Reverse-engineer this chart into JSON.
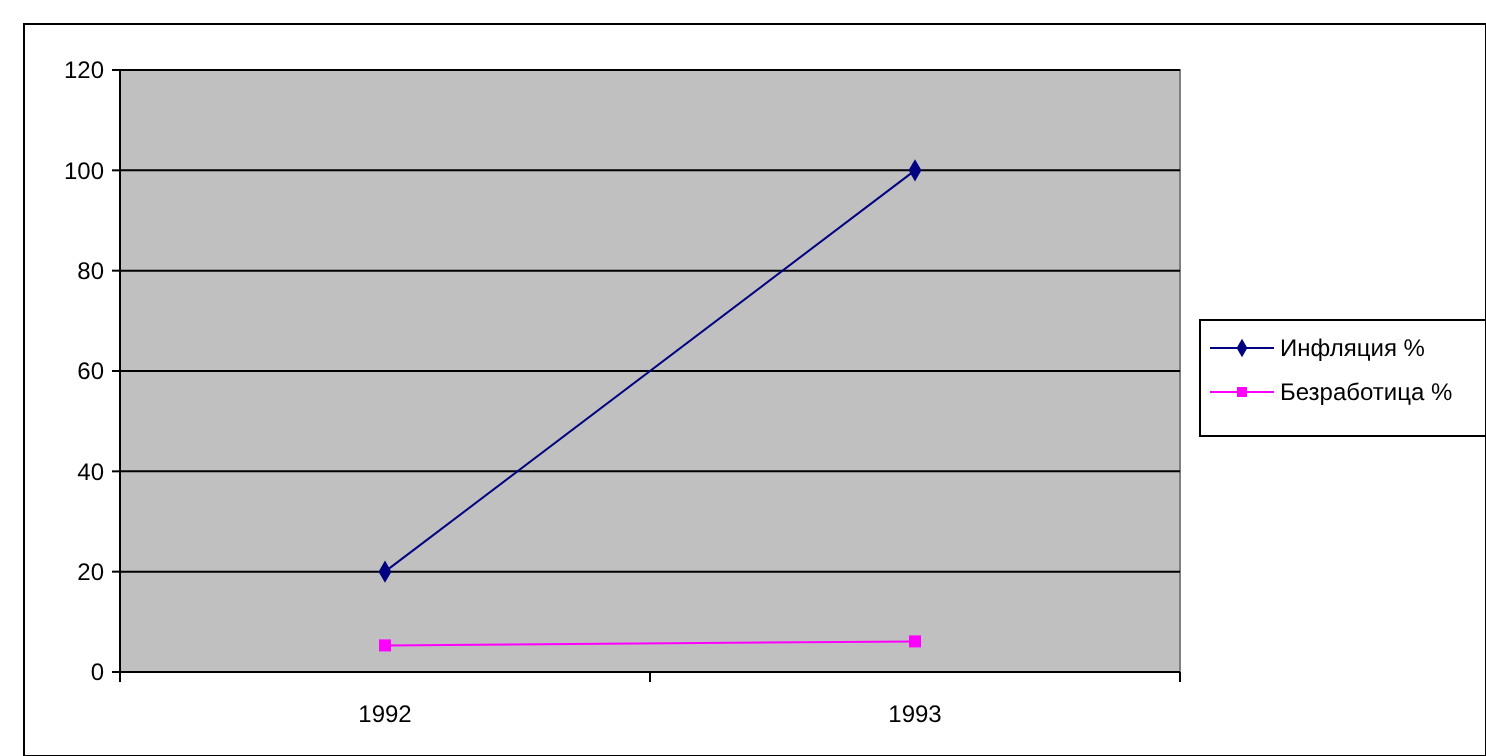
{
  "chart_data": {
    "type": "line",
    "categories": [
      "1992",
      "1993"
    ],
    "series": [
      {
        "name": "Инфляция %",
        "color": "#000080",
        "values": [
          20,
          100
        ],
        "marker": "diamond"
      },
      {
        "name": "Безработица %",
        "color": "#ff00ff",
        "values": [
          5.3,
          6.1
        ],
        "marker": "square"
      }
    ],
    "ylim": [
      0,
      120
    ],
    "yticks": [
      0,
      20,
      40,
      60,
      80,
      100,
      120
    ],
    "grid": "y",
    "legend": "right"
  }
}
